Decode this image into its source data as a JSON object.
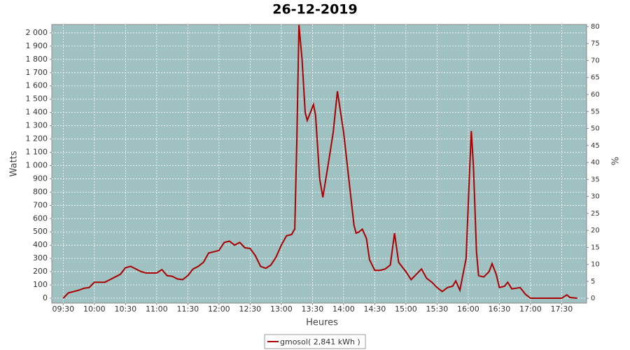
{
  "chart_data": {
    "type": "line",
    "title": "26-12-2019",
    "x_label": "Heures",
    "y_label": "Watts",
    "y2_label": "%",
    "x": [
      "09:30",
      "09:35",
      "09:40",
      "09:45",
      "09:50",
      "09:55",
      "10:00",
      "10:05",
      "10:10",
      "10:15",
      "10:20",
      "10:25",
      "10:30",
      "10:35",
      "10:40",
      "10:45",
      "10:50",
      "10:55",
      "11:00",
      "11:05",
      "11:10",
      "11:15",
      "11:20",
      "11:25",
      "11:30",
      "11:35",
      "11:40",
      "11:45",
      "11:50",
      "11:55",
      "12:00",
      "12:05",
      "12:10",
      "12:15",
      "12:20",
      "12:25",
      "12:30",
      "12:35",
      "12:40",
      "12:45",
      "12:50",
      "12:55",
      "13:00",
      "13:05",
      "13:10",
      "13:12",
      "13:13",
      "13:15",
      "13:17",
      "13:20",
      "13:23",
      "13:25",
      "13:28",
      "13:31",
      "13:33",
      "13:37",
      "13:40",
      "13:45",
      "13:50",
      "13:54",
      "14:00",
      "14:05",
      "14:10",
      "14:12",
      "14:15",
      "14:18",
      "14:22",
      "14:25",
      "14:30",
      "14:35",
      "14:40",
      "14:45",
      "14:49",
      "14:53",
      "14:57",
      "15:00",
      "15:05",
      "15:10",
      "15:15",
      "15:20",
      "15:25",
      "15:30",
      "15:35",
      "15:40",
      "15:45",
      "15:48",
      "15:52",
      "15:58",
      "16:01",
      "16:03",
      "16:05",
      "16:08",
      "16:10",
      "16:15",
      "16:20",
      "16:23",
      "16:27",
      "16:30",
      "16:35",
      "16:38",
      "16:42",
      "16:50",
      "16:55",
      "17:00",
      "17:30",
      "17:35",
      "17:38",
      "17:45"
    ],
    "series": [
      {
        "name": "gmosol( 2,841 kWh )",
        "color": "#aa0000",
        "values": [
          0,
          40,
          50,
          60,
          75,
          80,
          120,
          120,
          120,
          140,
          160,
          180,
          230,
          240,
          220,
          200,
          190,
          190,
          190,
          215,
          170,
          165,
          145,
          140,
          170,
          220,
          240,
          270,
          340,
          350,
          360,
          420,
          430,
          400,
          420,
          380,
          375,
          320,
          240,
          225,
          250,
          310,
          400,
          470,
          480,
          510,
          520,
          1200,
          2060,
          1800,
          1400,
          1340,
          1400,
          1460,
          1380,
          900,
          760,
          1000,
          1250,
          1560,
          1250,
          900,
          550,
          490,
          500,
          520,
          450,
          290,
          210,
          210,
          220,
          250,
          490,
          270,
          230,
          200,
          140,
          180,
          220,
          150,
          120,
          80,
          50,
          80,
          90,
          130,
          60,
          300,
          900,
          1260,
          1000,
          350,
          170,
          160,
          200,
          260,
          180,
          80,
          90,
          120,
          70,
          80,
          30,
          0,
          0,
          25,
          5,
          0
        ]
      }
    ],
    "xlim": [
      "09:19",
      "17:54"
    ],
    "xticks": [
      "09:30",
      "10:00",
      "10:30",
      "11:00",
      "11:30",
      "12:00",
      "12:30",
      "13:00",
      "13:30",
      "14:00",
      "14:30",
      "15:00",
      "15:30",
      "16:00",
      "16:30",
      "17:00",
      "17:30"
    ],
    "ylim": [
      -37,
      2063
    ],
    "yticks": [
      0,
      100,
      200,
      300,
      400,
      500,
      600,
      700,
      800,
      900,
      {
        "value": 1000,
        "label": "1 000"
      },
      {
        "value": 1100,
        "label": "1 100"
      },
      {
        "value": 1200,
        "label": "1 200"
      },
      {
        "value": 1300,
        "label": "1 300"
      },
      {
        "value": 1400,
        "label": "1 400"
      },
      {
        "value": 1500,
        "label": "1 500"
      },
      {
        "value": 1600,
        "label": "1 600"
      },
      {
        "value": 1700,
        "label": "1 700"
      },
      {
        "value": 1800,
        "label": "1 800"
      },
      {
        "value": 1900,
        "label": "1 900"
      },
      {
        "value": 2000,
        "label": "2 000"
      }
    ],
    "y2lim": [
      -1.4,
      80.6
    ],
    "y2ticks": [
      0,
      5,
      10,
      15,
      20,
      25,
      30,
      35,
      40,
      45,
      50,
      55,
      60,
      65,
      70,
      75,
      80
    ],
    "grid": true
  }
}
